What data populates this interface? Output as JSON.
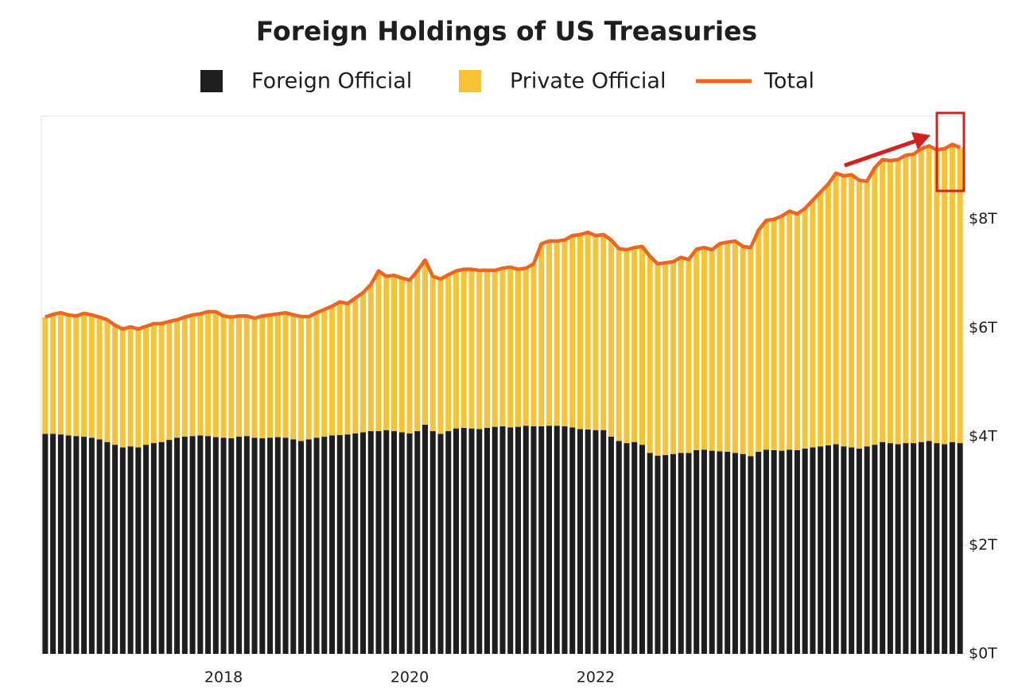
{
  "chart_data": {
    "type": "bar",
    "title": "Foreign Holdings of US Treasuries",
    "categories": [
      null,
      null,
      null,
      null,
      null,
      null,
      null,
      null,
      null,
      null,
      null,
      null,
      null,
      null,
      null,
      null,
      null,
      null,
      null,
      null,
      null,
      null,
      null,
      "2018",
      null,
      null,
      null,
      null,
      null,
      null,
      null,
      null,
      null,
      null,
      null,
      null,
      null,
      null,
      null,
      null,
      null,
      null,
      null,
      null,
      null,
      null,
      null,
      "2020",
      null,
      null,
      null,
      null,
      null,
      null,
      null,
      null,
      null,
      null,
      null,
      null,
      null,
      null,
      null,
      null,
      null,
      null,
      null,
      null,
      null,
      null,
      null,
      "2022",
      null,
      null,
      null,
      null,
      null,
      null,
      null,
      null,
      null,
      null,
      null,
      null,
      null,
      null,
      null,
      null,
      null,
      null,
      null,
      null,
      null,
      null,
      null,
      null,
      null,
      null,
      null,
      null,
      null,
      null,
      null,
      null,
      null,
      null,
      null,
      null,
      null,
      null,
      null,
      null,
      null,
      null,
      null,
      null,
      null,
      null,
      null
    ],
    "series": [
      {
        "name": "Foreign Official",
        "color": "#1e1e1e",
        "values": [
          4.05,
          4.05,
          4.04,
          4.02,
          4.01,
          4.0,
          3.98,
          3.95,
          3.9,
          3.85,
          3.8,
          3.82,
          3.8,
          3.85,
          3.88,
          3.9,
          3.94,
          3.98,
          4.0,
          4.01,
          4.02,
          4.01,
          3.99,
          3.98,
          3.97,
          4.0,
          4.01,
          3.98,
          3.97,
          3.98,
          3.99,
          3.98,
          3.95,
          3.92,
          3.95,
          3.98,
          4.0,
          4.02,
          4.03,
          4.04,
          4.06,
          4.08,
          4.1,
          4.1,
          4.12,
          4.1,
          4.08,
          4.06,
          4.1,
          4.22,
          4.1,
          4.05,
          4.1,
          4.15,
          4.16,
          4.15,
          4.14,
          4.16,
          4.18,
          4.19,
          4.17,
          4.18,
          4.2,
          4.19,
          4.19,
          4.2,
          4.2,
          4.19,
          4.17,
          4.14,
          4.13,
          4.12,
          4.12,
          4.0,
          3.92,
          3.88,
          3.9,
          3.85,
          3.7,
          3.65,
          3.66,
          3.68,
          3.7,
          3.7,
          3.75,
          3.76,
          3.74,
          3.73,
          3.72,
          3.7,
          3.68,
          3.64,
          3.72,
          3.76,
          3.75,
          3.74,
          3.76,
          3.75,
          3.78,
          3.8,
          3.82,
          3.84,
          3.86,
          3.82,
          3.8,
          3.78,
          3.82,
          3.85,
          3.9,
          3.88,
          3.86,
          3.88,
          3.88,
          3.9,
          3.92,
          3.88,
          3.86,
          3.9,
          3.88
        ]
      },
      {
        "name": "Private Official",
        "color": "#f7c234",
        "values": [
          2.15,
          2.2,
          2.24,
          2.22,
          2.21,
          2.27,
          2.26,
          2.25,
          2.25,
          2.2,
          2.18,
          2.2,
          2.18,
          2.18,
          2.2,
          2.18,
          2.18,
          2.17,
          2.2,
          2.23,
          2.24,
          2.29,
          2.31,
          2.24,
          2.23,
          2.22,
          2.21,
          2.2,
          2.25,
          2.26,
          2.27,
          2.3,
          2.29,
          2.29,
          2.26,
          2.3,
          2.34,
          2.38,
          2.45,
          2.41,
          2.49,
          2.57,
          2.7,
          2.95,
          2.83,
          2.87,
          2.84,
          2.82,
          2.95,
          3.03,
          2.85,
          2.85,
          2.88,
          2.9,
          2.92,
          2.93,
          2.92,
          2.9,
          2.88,
          2.91,
          2.95,
          2.9,
          2.9,
          2.99,
          3.36,
          3.4,
          3.4,
          3.43,
          3.53,
          3.58,
          3.63,
          3.58,
          3.6,
          3.62,
          3.54,
          3.56,
          3.58,
          3.65,
          3.62,
          3.53,
          3.54,
          3.54,
          3.6,
          3.56,
          3.7,
          3.72,
          3.7,
          3.82,
          3.86,
          3.9,
          3.82,
          3.84,
          4.08,
          4.22,
          4.25,
          4.32,
          4.39,
          4.35,
          4.42,
          4.55,
          4.68,
          4.81,
          4.99,
          4.98,
          5.02,
          4.94,
          4.88,
          5.1,
          5.2,
          5.2,
          5.24,
          5.3,
          5.32,
          5.4,
          5.43,
          5.4,
          5.44,
          5.48,
          5.44
        ]
      },
      {
        "name": "Total",
        "color": "#f0641e",
        "type": "line",
        "values": [
          6.2,
          6.25,
          6.28,
          6.24,
          6.22,
          6.27,
          6.24,
          6.2,
          6.15,
          6.05,
          5.98,
          6.02,
          5.98,
          6.03,
          6.08,
          6.08,
          6.12,
          6.15,
          6.2,
          6.24,
          6.26,
          6.3,
          6.3,
          6.22,
          6.2,
          6.22,
          6.22,
          6.18,
          6.22,
          6.24,
          6.26,
          6.28,
          6.24,
          6.21,
          6.21,
          6.28,
          6.34,
          6.4,
          6.48,
          6.45,
          6.55,
          6.65,
          6.8,
          7.05,
          6.95,
          6.97,
          6.92,
          6.88,
          7.05,
          7.25,
          6.95,
          6.9,
          6.98,
          7.05,
          7.08,
          7.08,
          7.06,
          7.06,
          7.06,
          7.1,
          7.12,
          7.08,
          7.1,
          7.18,
          7.55,
          7.6,
          7.6,
          7.62,
          7.7,
          7.72,
          7.76,
          7.7,
          7.72,
          7.62,
          7.46,
          7.44,
          7.48,
          7.5,
          7.32,
          7.18,
          7.2,
          7.22,
          7.3,
          7.26,
          7.45,
          7.48,
          7.44,
          7.55,
          7.58,
          7.6,
          7.5,
          7.48,
          7.8,
          7.98,
          8.0,
          8.06,
          8.15,
          8.1,
          8.2,
          8.35,
          8.5,
          8.65,
          8.85,
          8.8,
          8.82,
          8.72,
          8.7,
          8.95,
          9.1,
          9.08,
          9.1,
          9.18,
          9.2,
          9.3,
          9.35,
          9.28,
          9.3,
          9.38,
          9.32
        ]
      }
    ],
    "stacked": true,
    "ylim": [
      0,
      9.9
    ],
    "yticks": [
      {
        "value": 0,
        "label": "$0T"
      },
      {
        "value": 2,
        "label": "$2T"
      },
      {
        "value": 4,
        "label": "$4T"
      },
      {
        "value": 6,
        "label": "$6T"
      },
      {
        "value": 8,
        "label": "$8T"
      }
    ],
    "grid": false,
    "legend": "top"
  }
}
